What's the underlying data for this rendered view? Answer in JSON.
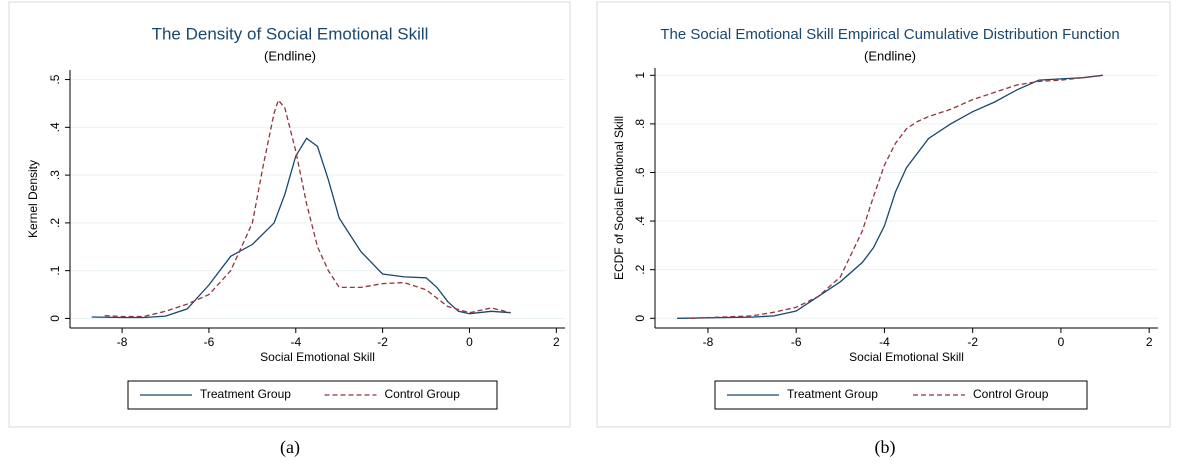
{
  "chart_data": [
    {
      "type": "line",
      "title": "The Density of Social Emotional Skill",
      "subtitle": "(Endline)",
      "x_label": "Social Emotional Skill",
      "y_label": "Kernel Density",
      "caption": "(a)",
      "xlim": [
        -9.2,
        2.2
      ],
      "xticks": [
        -8,
        -6,
        -4,
        -2,
        0,
        2
      ],
      "ylim": [
        -0.02,
        0.52
      ],
      "yticks": [
        0,
        {
          "value": 0.1,
          "label": ".1"
        },
        {
          "value": 0.2,
          "label": ".2"
        },
        {
          "value": 0.3,
          "label": ".3"
        },
        {
          "value": 0.4,
          "label": ".4"
        },
        {
          "value": 0.5,
          "label": ".5"
        }
      ],
      "grid": true,
      "series": [
        {
          "name": "Treatment Group",
          "color": "#1a476f",
          "style": "solid",
          "x": [
            -8.7,
            -8,
            -7.5,
            -7,
            -6.5,
            -6,
            -5.5,
            -5,
            -4.5,
            -4.25,
            -4,
            -3.75,
            -3.5,
            -3.25,
            -3,
            -2.5,
            -2,
            -1.5,
            -1,
            -0.75,
            -0.5,
            -0.25,
            0,
            0.5,
            0.95
          ],
          "values": [
            0.003,
            0.002,
            0.002,
            0.005,
            0.02,
            0.07,
            0.13,
            0.155,
            0.2,
            0.26,
            0.34,
            0.377,
            0.36,
            0.29,
            0.21,
            0.14,
            0.093,
            0.087,
            0.085,
            0.065,
            0.035,
            0.015,
            0.01,
            0.015,
            0.012
          ]
        },
        {
          "name": "Control Group",
          "color": "#90353b",
          "style": "dashed",
          "x": [
            -8.4,
            -8,
            -7.5,
            -7,
            -6.5,
            -6,
            -5.5,
            -5,
            -4.75,
            -4.5,
            -4.4,
            -4.25,
            -4,
            -3.75,
            -3.5,
            -3.25,
            -3,
            -2.5,
            -2,
            -1.5,
            -1,
            -0.5,
            0,
            0.5,
            0.95
          ],
          "values": [
            0.006,
            0.004,
            0.004,
            0.015,
            0.03,
            0.05,
            0.1,
            0.2,
            0.32,
            0.43,
            0.457,
            0.44,
            0.35,
            0.24,
            0.15,
            0.1,
            0.065,
            0.065,
            0.073,
            0.075,
            0.06,
            0.025,
            0.012,
            0.022,
            0.012
          ]
        }
      ]
    },
    {
      "type": "line",
      "title": "The Social Emotional Skill Empirical Cumulative Distribution Function",
      "subtitle": "(Endline)",
      "x_label": "Social Emotional Skill",
      "y_label": "ECDF of Social Emotional Skill",
      "caption": "(b)",
      "xlim": [
        -9.2,
        2.2
      ],
      "xticks": [
        -8,
        -6,
        -4,
        -2,
        0,
        2
      ],
      "ylim": [
        -0.04,
        1.03
      ],
      "yticks": [
        0,
        {
          "value": 0.2,
          "label": ".2"
        },
        {
          "value": 0.4,
          "label": ".4"
        },
        {
          "value": 0.6,
          "label": ".6"
        },
        {
          "value": 0.8,
          "label": ".8"
        },
        1
      ],
      "grid": true,
      "series": [
        {
          "name": "Treatment Group",
          "color": "#1a476f",
          "style": "solid",
          "x": [
            -8.7,
            -7,
            -6.5,
            -6,
            -5.5,
            -5,
            -4.5,
            -4.25,
            -4,
            -3.75,
            -3.5,
            -3,
            -2.5,
            -2,
            -1.5,
            -1,
            -0.5,
            0,
            0.5,
            0.95
          ],
          "values": [
            0,
            0.005,
            0.01,
            0.03,
            0.09,
            0.15,
            0.23,
            0.29,
            0.38,
            0.52,
            0.62,
            0.74,
            0.8,
            0.85,
            0.89,
            0.94,
            0.98,
            0.985,
            0.99,
            1
          ]
        },
        {
          "name": "Control Group",
          "color": "#90353b",
          "style": "dashed",
          "x": [
            -8.4,
            -7,
            -6.5,
            -6,
            -5.5,
            -5,
            -4.5,
            -4.25,
            -4,
            -3.75,
            -3.5,
            -3.25,
            -3,
            -2.5,
            -2,
            -1.5,
            -1,
            -0.5,
            0,
            0.5,
            0.95
          ],
          "values": [
            0,
            0.01,
            0.025,
            0.045,
            0.09,
            0.17,
            0.36,
            0.5,
            0.63,
            0.72,
            0.78,
            0.81,
            0.83,
            0.86,
            0.9,
            0.93,
            0.96,
            0.975,
            0.98,
            0.99,
            1
          ]
        }
      ]
    }
  ]
}
